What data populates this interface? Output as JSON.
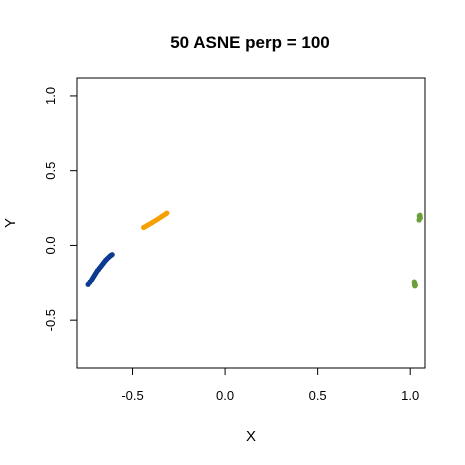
{
  "chart_data": {
    "type": "scatter",
    "title": "50 ASNE perp = 100",
    "xlabel": "X",
    "ylabel": "Y",
    "xlim": [
      -0.8,
      1.08
    ],
    "ylim": [
      -0.82,
      1.12
    ],
    "x_ticks": [
      -0.5,
      0.0,
      0.5,
      1.0
    ],
    "x_tick_labels": [
      "-0.5",
      "0.0",
      "0.5",
      "1.0"
    ],
    "y_ticks": [
      -0.5,
      0.0,
      0.5,
      1.0
    ],
    "y_tick_labels": [
      "-0.5",
      "0.0",
      "0.5",
      "1.0"
    ],
    "grid": false,
    "series": [
      {
        "color": "#0b3a8f",
        "x": [
          -0.74,
          -0.73,
          -0.72,
          -0.715,
          -0.71,
          -0.705,
          -0.7,
          -0.695,
          -0.69,
          -0.685,
          -0.68,
          -0.675,
          -0.67,
          -0.665,
          -0.66,
          -0.655,
          -0.65,
          -0.645,
          -0.64,
          -0.635,
          -0.63,
          -0.625,
          -0.62,
          -0.615,
          -0.61
        ],
        "y": [
          -0.26,
          -0.245,
          -0.23,
          -0.22,
          -0.21,
          -0.2,
          -0.19,
          -0.18,
          -0.17,
          -0.165,
          -0.155,
          -0.148,
          -0.14,
          -0.132,
          -0.124,
          -0.116,
          -0.108,
          -0.1,
          -0.094,
          -0.088,
          -0.082,
          -0.076,
          -0.07,
          -0.066,
          -0.062
        ]
      },
      {
        "color": "#f5a000",
        "x": [
          -0.44,
          -0.43,
          -0.42,
          -0.41,
          -0.4,
          -0.39,
          -0.38,
          -0.37,
          -0.36,
          -0.35,
          -0.34,
          -0.33,
          -0.32,
          -0.315
        ],
        "y": [
          0.12,
          0.127,
          0.134,
          0.141,
          0.148,
          0.156,
          0.163,
          0.171,
          0.179,
          0.187,
          0.195,
          0.203,
          0.211,
          0.216
        ]
      },
      {
        "color": "#6a9f3a",
        "x": [
          1.048,
          1.05,
          1.052,
          1.054,
          1.051,
          1.049,
          1.053,
          1.055,
          1.022,
          1.024,
          1.026,
          1.028,
          1.025,
          1.023
        ],
        "y": [
          0.17,
          0.176,
          0.182,
          0.188,
          0.193,
          0.198,
          0.202,
          0.185,
          -0.245,
          -0.252,
          -0.258,
          -0.265,
          -0.27,
          -0.262
        ]
      }
    ]
  }
}
